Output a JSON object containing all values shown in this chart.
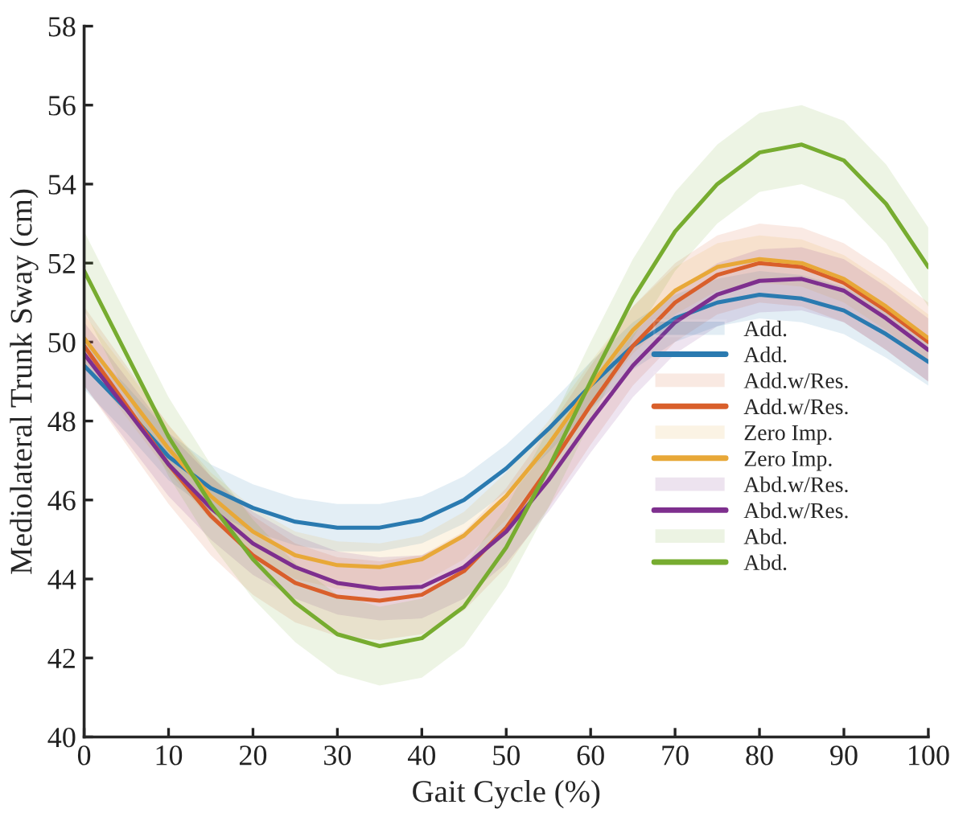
{
  "chart_data": {
    "type": "line",
    "xlabel": "Gait Cycle (%)",
    "ylabel": "Mediolateral Trunk Sway (cm)",
    "x": [
      0,
      5,
      10,
      15,
      20,
      25,
      30,
      35,
      40,
      45,
      50,
      55,
      60,
      65,
      70,
      75,
      80,
      85,
      90,
      95,
      100
    ],
    "xlim": [
      0,
      100
    ],
    "xticks": [
      0,
      10,
      20,
      30,
      40,
      50,
      60,
      70,
      80,
      90,
      100
    ],
    "ylim": [
      40,
      58
    ],
    "yticks": [
      40,
      42,
      44,
      46,
      48,
      50,
      52,
      54,
      56,
      58
    ],
    "grid": false,
    "legend": "bottom right",
    "line_style": "solid",
    "marker": "none",
    "series": [
      {
        "name": "Add.",
        "color": "#2a7ab0",
        "values": [
          49.4,
          48.3,
          47.1,
          46.3,
          45.8,
          45.45,
          45.3,
          45.3,
          45.5,
          46.0,
          46.8,
          47.8,
          48.9,
          49.9,
          50.6,
          51.0,
          51.2,
          51.1,
          50.8,
          50.2,
          49.5
        ],
        "lower": [
          48.8,
          47.7,
          46.5,
          45.7,
          45.2,
          44.85,
          44.7,
          44.7,
          44.9,
          45.4,
          46.2,
          47.2,
          48.3,
          49.3,
          50.0,
          50.4,
          50.6,
          50.5,
          50.2,
          49.6,
          48.9
        ],
        "upper": [
          50.0,
          48.9,
          47.7,
          46.9,
          46.4,
          46.05,
          45.9,
          45.9,
          46.1,
          46.6,
          47.4,
          48.4,
          49.5,
          50.5,
          51.2,
          51.6,
          51.8,
          51.7,
          51.4,
          50.8,
          50.1
        ]
      },
      {
        "name": "Add.w/Res.",
        "color": "#d95f2b",
        "values": [
          49.9,
          48.4,
          46.9,
          45.6,
          44.6,
          43.9,
          43.55,
          43.45,
          43.6,
          44.2,
          45.3,
          46.8,
          48.4,
          49.9,
          51.0,
          51.7,
          52.0,
          51.9,
          51.5,
          50.8,
          50.0
        ],
        "lower": [
          48.9,
          47.4,
          45.9,
          44.6,
          43.6,
          42.9,
          42.55,
          42.45,
          42.6,
          43.2,
          44.3,
          45.8,
          47.4,
          48.9,
          50.0,
          50.7,
          51.0,
          50.9,
          50.5,
          49.8,
          49.0
        ],
        "upper": [
          50.9,
          49.4,
          47.9,
          46.6,
          45.6,
          44.9,
          44.55,
          44.45,
          44.6,
          45.2,
          46.3,
          47.8,
          49.4,
          50.9,
          52.0,
          52.7,
          53.0,
          52.9,
          52.5,
          51.8,
          51.0
        ]
      },
      {
        "name": "Zero Imp.",
        "color": "#e8a838",
        "values": [
          50.1,
          48.7,
          47.3,
          46.1,
          45.2,
          44.6,
          44.35,
          44.3,
          44.5,
          45.1,
          46.1,
          47.4,
          48.9,
          50.3,
          51.3,
          51.9,
          52.1,
          52.0,
          51.6,
          50.9,
          50.1
        ],
        "lower": [
          49.5,
          48.1,
          46.7,
          45.5,
          44.6,
          44.0,
          43.75,
          43.7,
          43.9,
          44.5,
          45.5,
          46.8,
          48.3,
          49.7,
          50.7,
          51.3,
          51.5,
          51.4,
          51.0,
          50.3,
          49.5
        ],
        "upper": [
          50.7,
          49.3,
          47.9,
          46.7,
          45.8,
          45.2,
          44.95,
          44.9,
          45.1,
          45.7,
          46.7,
          48.0,
          49.5,
          50.9,
          51.9,
          52.5,
          52.7,
          52.6,
          52.2,
          51.5,
          50.7
        ]
      },
      {
        "name": "Abd.w/Res.",
        "color": "#7e2f8e",
        "values": [
          49.7,
          48.3,
          46.9,
          45.8,
          44.9,
          44.3,
          43.9,
          43.75,
          43.8,
          44.3,
          45.2,
          46.5,
          48.0,
          49.4,
          50.5,
          51.2,
          51.55,
          51.6,
          51.3,
          50.6,
          49.8
        ],
        "lower": [
          48.9,
          47.5,
          46.1,
          45.0,
          44.1,
          43.5,
          43.1,
          42.95,
          43.0,
          43.5,
          44.4,
          45.7,
          47.2,
          48.6,
          49.7,
          50.4,
          50.75,
          50.8,
          50.5,
          49.8,
          49.0
        ],
        "upper": [
          50.5,
          49.1,
          47.7,
          46.6,
          45.7,
          45.1,
          44.7,
          44.55,
          44.6,
          45.1,
          46.0,
          47.3,
          48.8,
          50.2,
          51.3,
          52.0,
          52.35,
          52.4,
          52.1,
          51.4,
          50.6
        ]
      },
      {
        "name": "Abd.",
        "color": "#77ac30",
        "values": [
          51.8,
          49.7,
          47.6,
          45.9,
          44.5,
          43.4,
          42.6,
          42.3,
          42.5,
          43.3,
          44.8,
          46.8,
          49.0,
          51.1,
          52.8,
          54.0,
          54.8,
          55.0,
          54.6,
          53.5,
          51.9
        ],
        "lower": [
          50.8,
          48.7,
          46.6,
          44.9,
          43.5,
          42.4,
          41.6,
          41.3,
          41.5,
          42.3,
          43.8,
          45.8,
          48.0,
          50.1,
          51.8,
          53.0,
          53.8,
          54.0,
          53.6,
          52.5,
          50.9
        ],
        "upper": [
          52.8,
          50.7,
          48.6,
          46.9,
          45.5,
          44.4,
          43.6,
          43.3,
          43.5,
          44.3,
          45.8,
          47.8,
          50.0,
          52.1,
          53.8,
          55.0,
          55.8,
          56.0,
          55.6,
          54.5,
          52.9
        ]
      }
    ]
  }
}
